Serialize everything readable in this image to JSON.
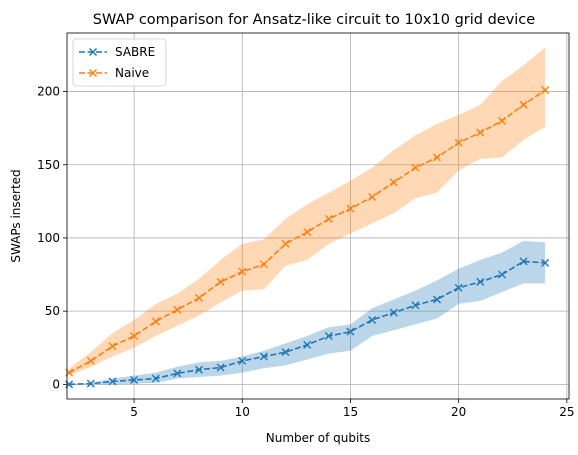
{
  "chart_data": {
    "type": "line",
    "title": "SWAP comparison for Ansatz-like circuit to 10x10 grid device",
    "xlabel": "Number of qubits",
    "ylabel": "SWAPs inserted",
    "xlim": [
      1.9,
      25.1
    ],
    "ylim": [
      -10,
      240
    ],
    "xticks": [
      5,
      10,
      15,
      20,
      25
    ],
    "yticks": [
      0,
      50,
      100,
      150,
      200
    ],
    "xtick_labels": [
      "5",
      "10",
      "15",
      "20",
      "25"
    ],
    "ytick_labels": [
      "0",
      "50",
      "100",
      "150",
      "200"
    ],
    "grid": true,
    "legend": {
      "position": "top-left"
    },
    "x": [
      2,
      3,
      4,
      5,
      6,
      7,
      8,
      9,
      10,
      11,
      12,
      13,
      14,
      15,
      16,
      17,
      18,
      19,
      20,
      21,
      22,
      23,
      24
    ],
    "series": [
      {
        "name": "SABRE",
        "color": "#1f77b4",
        "values": [
          0,
          0.5,
          2,
          3,
          4,
          7.5,
          10,
          11.5,
          16,
          19,
          22,
          27,
          33,
          36,
          44,
          49,
          54,
          58,
          66,
          70,
          75,
          84,
          83
        ],
        "lower": [
          0,
          0,
          0,
          0.5,
          1,
          4,
          5,
          6,
          8,
          11,
          13,
          17,
          21,
          23,
          33,
          37,
          41,
          45,
          55,
          57,
          63,
          69,
          69
        ],
        "upper": [
          0,
          1,
          4,
          6,
          8,
          12,
          15,
          16,
          19,
          23,
          28,
          33,
          39,
          41,
          52,
          58,
          64,
          71,
          79,
          85,
          90,
          98,
          97
        ]
      },
      {
        "name": "Naive",
        "color": "#ff7f0e",
        "values": [
          8,
          16,
          26,
          33,
          43,
          51,
          59,
          70,
          77,
          82,
          96,
          104,
          113,
          120,
          128,
          138,
          148,
          155,
          165,
          172,
          180,
          191,
          201
        ],
        "lower": [
          6,
          12,
          19,
          25,
          33,
          40,
          47,
          56,
          64,
          65,
          81,
          85,
          96,
          103,
          110,
          117,
          127,
          131,
          146,
          154,
          155,
          167,
          176
        ],
        "upper": [
          11,
          22,
          35,
          44,
          55,
          62,
          72,
          85,
          96,
          99,
          113,
          123,
          131,
          139,
          148,
          160,
          170,
          178,
          184,
          191,
          207,
          218,
          230
        ]
      }
    ]
  }
}
